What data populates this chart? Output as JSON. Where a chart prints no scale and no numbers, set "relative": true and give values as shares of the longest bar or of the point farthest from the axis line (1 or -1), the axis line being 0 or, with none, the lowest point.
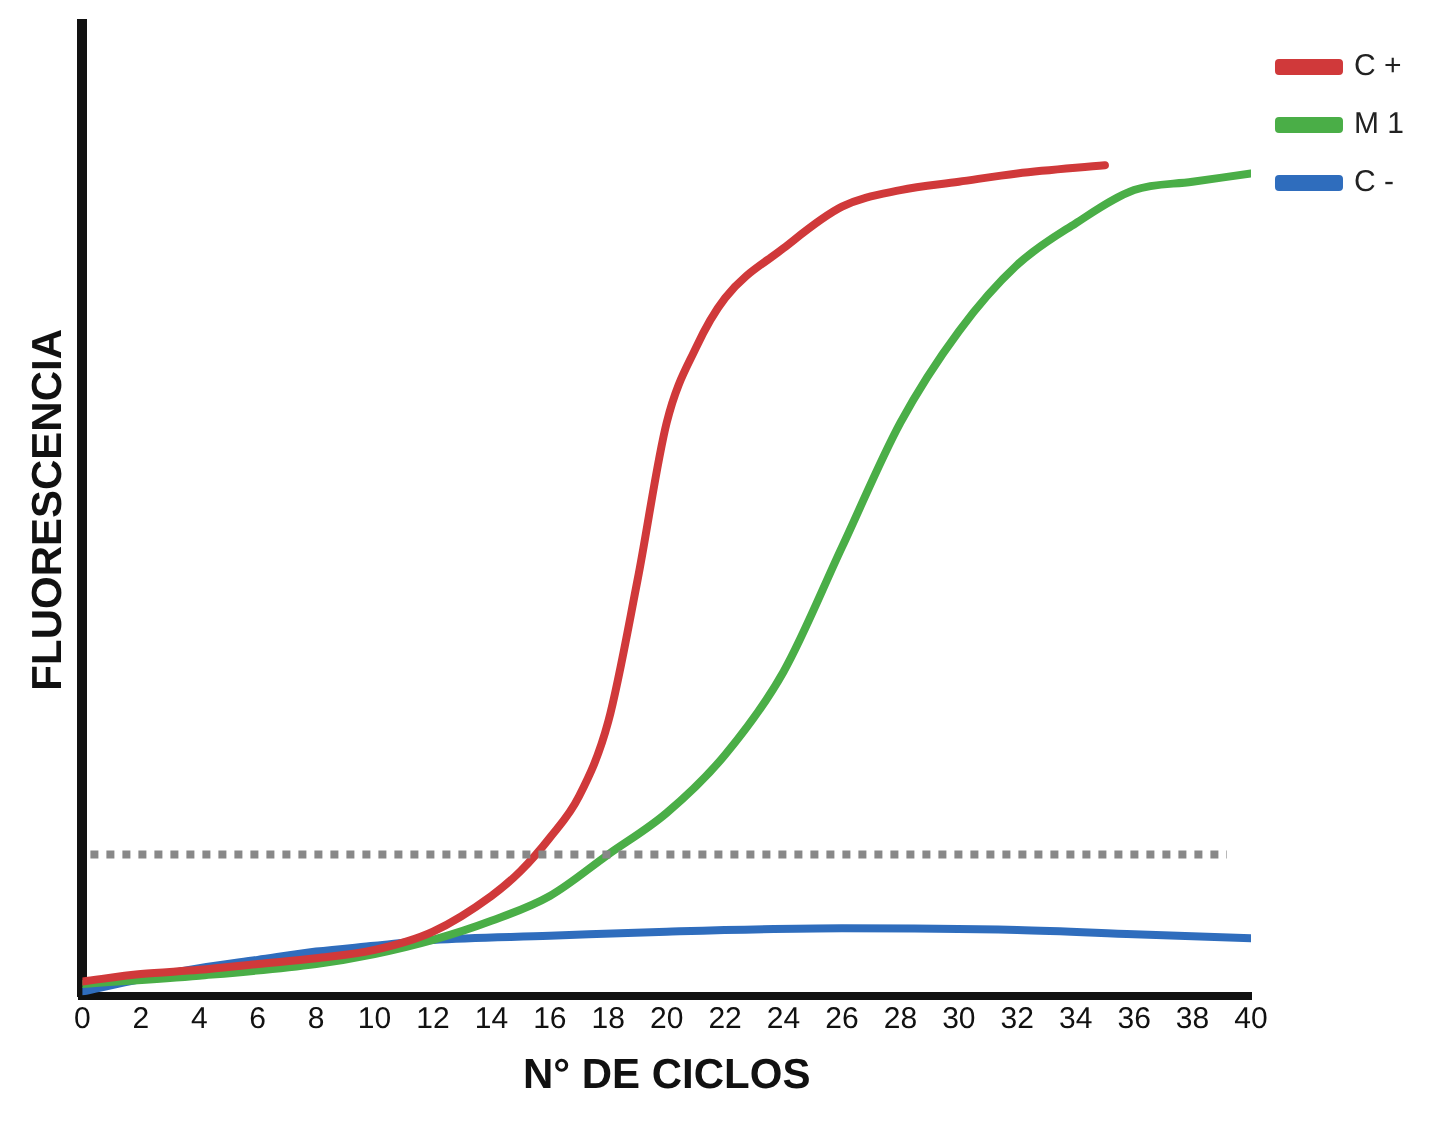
{
  "chart_data": {
    "type": "line",
    "relative": true,
    "xlabel": "N° DE CICLOS",
    "ylabel": "FLUORESCENCIA",
    "xlim": [
      0,
      40
    ],
    "xticks": [
      0,
      2,
      4,
      6,
      8,
      10,
      12,
      14,
      16,
      18,
      20,
      22,
      24,
      26,
      28,
      30,
      32,
      34,
      36,
      38,
      40
    ],
    "legend": "top right",
    "grid": false,
    "marker": "none",
    "line_style": "solid",
    "ref_lines": [
      {
        "axis": "y",
        "value": 0.17,
        "color": "#888888",
        "line_style": "dotted"
      }
    ],
    "series": [
      {
        "name": "C +",
        "color": "#d0393a",
        "x": [
          0,
          2,
          4,
          6,
          8,
          10,
          12,
          14,
          15,
          16,
          17,
          18,
          19,
          20,
          21,
          22,
          24,
          26,
          28,
          30,
          32,
          35
        ],
        "values": [
          0.017,
          0.026,
          0.031,
          0.038,
          0.045,
          0.055,
          0.077,
          0.12,
          0.15,
          0.19,
          0.24,
          0.33,
          0.5,
          0.69,
          0.78,
          0.84,
          0.9,
          0.95,
          0.97,
          0.98,
          0.99,
          1.0
        ]
      },
      {
        "name": "M 1",
        "color": "#4aae47",
        "x": [
          0,
          4,
          8,
          10,
          12,
          14,
          16,
          18,
          20,
          22,
          24,
          26,
          28,
          30,
          32,
          34,
          36,
          38,
          40
        ],
        "values": [
          0.014,
          0.024,
          0.038,
          0.05,
          0.067,
          0.09,
          0.12,
          0.17,
          0.22,
          0.29,
          0.39,
          0.54,
          0.69,
          0.8,
          0.88,
          0.93,
          0.97,
          0.98,
          0.99
        ]
      },
      {
        "name": "C -",
        "color": "#2f6dbd",
        "x": [
          0,
          2,
          4,
          6,
          8,
          10,
          12,
          16,
          20,
          26,
          32,
          36,
          40
        ],
        "values": [
          0.005,
          0.02,
          0.033,
          0.043,
          0.053,
          0.06,
          0.067,
          0.072,
          0.077,
          0.081,
          0.079,
          0.074,
          0.069
        ]
      }
    ]
  }
}
